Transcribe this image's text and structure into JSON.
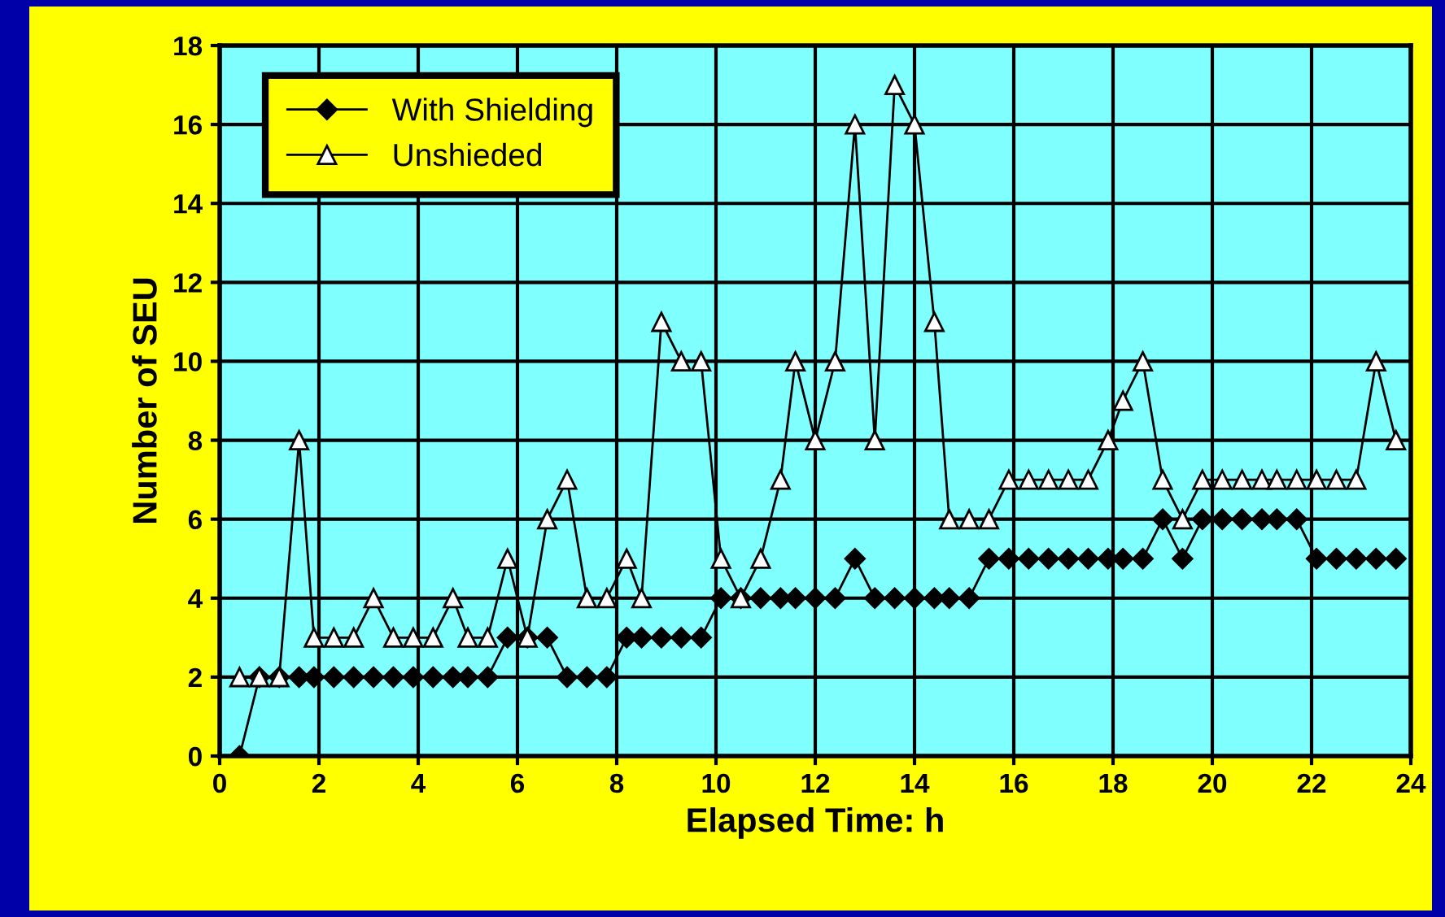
{
  "chart_data": {
    "type": "line",
    "xlabel": "Elapsed Time: h",
    "ylabel": "Number of SEU",
    "x": [
      0.4,
      0.8,
      1.2,
      1.6,
      1.9,
      2.3,
      2.7,
      3.1,
      3.5,
      3.9,
      4.3,
      4.7,
      5.0,
      5.4,
      5.8,
      6.2,
      6.6,
      7.0,
      7.4,
      7.8,
      8.2,
      8.5,
      8.9,
      9.3,
      9.7,
      10.1,
      10.5,
      10.9,
      11.3,
      11.6,
      12.0,
      12.4,
      12.8,
      13.2,
      13.6,
      14.0,
      14.4,
      14.7,
      15.1,
      15.5,
      15.9,
      16.3,
      16.7,
      17.1,
      17.5,
      17.9,
      18.2,
      18.6,
      19.0,
      19.4,
      19.8,
      20.2,
      20.6,
      21.0,
      21.3,
      21.7,
      22.1,
      22.5,
      22.9,
      23.3,
      23.7
    ],
    "series": [
      {
        "name": "With Shielding",
        "color": "#000000",
        "marker": "diamond",
        "values": [
          0,
          2,
          2,
          2,
          2,
          2,
          2,
          2,
          2,
          2,
          2,
          2,
          2,
          2,
          3,
          3,
          3,
          2,
          2,
          2,
          3,
          3,
          3,
          3,
          3,
          4,
          4,
          4,
          4,
          4,
          4,
          4,
          5,
          4,
          4,
          4,
          4,
          4,
          4,
          5,
          5,
          5,
          5,
          5,
          5,
          5,
          5,
          5,
          6,
          5,
          6,
          6,
          6,
          6,
          6,
          6,
          5,
          5,
          5,
          5,
          5
        ]
      },
      {
        "name": "Unshieded",
        "color": "#000000",
        "marker": "triangle",
        "values": [
          2,
          2,
          2,
          8,
          3,
          3,
          3,
          4,
          3,
          3,
          3,
          4,
          3,
          3,
          5,
          3,
          6,
          7,
          4,
          4,
          5,
          4,
          11,
          10,
          10,
          5,
          4,
          5,
          7,
          10,
          8,
          10,
          16,
          8,
          17,
          16,
          11,
          6,
          6,
          6,
          7,
          7,
          7,
          7,
          7,
          8,
          9,
          10,
          7,
          6,
          7,
          7,
          7,
          7,
          7,
          7,
          7,
          7,
          7,
          10,
          8
        ]
      }
    ],
    "xlim": [
      0,
      24
    ],
    "xticks": [
      0,
      2,
      4,
      6,
      8,
      10,
      12,
      14,
      16,
      18,
      20,
      22,
      24
    ],
    "ylim": [
      0,
      18
    ],
    "yticks": [
      0,
      2,
      4,
      6,
      8,
      10,
      12,
      14,
      16,
      18
    ],
    "grid": true,
    "legend": "top left",
    "line_style": "solid"
  }
}
